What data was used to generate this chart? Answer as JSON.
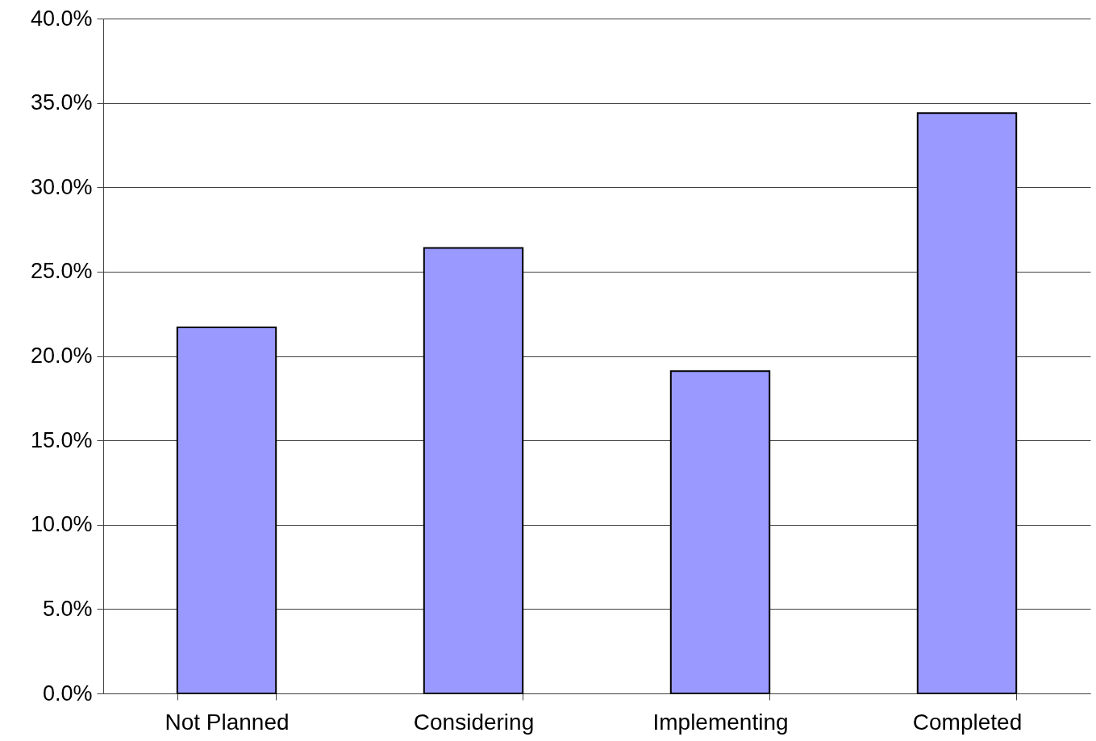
{
  "chart_data": {
    "type": "bar",
    "categories": [
      "Not Planned",
      "Considering",
      "Implementing",
      "Completed"
    ],
    "values": [
      21.7,
      26.4,
      19.1,
      34.4
    ],
    "color": "#9999ff",
    "ylim": [
      0,
      40
    ],
    "yticks": [
      {
        "value": 0,
        "label": "0.0%"
      },
      {
        "value": 5,
        "label": "5.0%"
      },
      {
        "value": 10,
        "label": "10.0%"
      },
      {
        "value": 15,
        "label": "15.0%"
      },
      {
        "value": 20,
        "label": "20.0%"
      },
      {
        "value": 25,
        "label": "25.0%"
      },
      {
        "value": 30,
        "label": "30.0%"
      },
      {
        "value": 35,
        "label": "35.0%"
      },
      {
        "value": 40,
        "label": "40.0%"
      }
    ],
    "grid": "y"
  }
}
